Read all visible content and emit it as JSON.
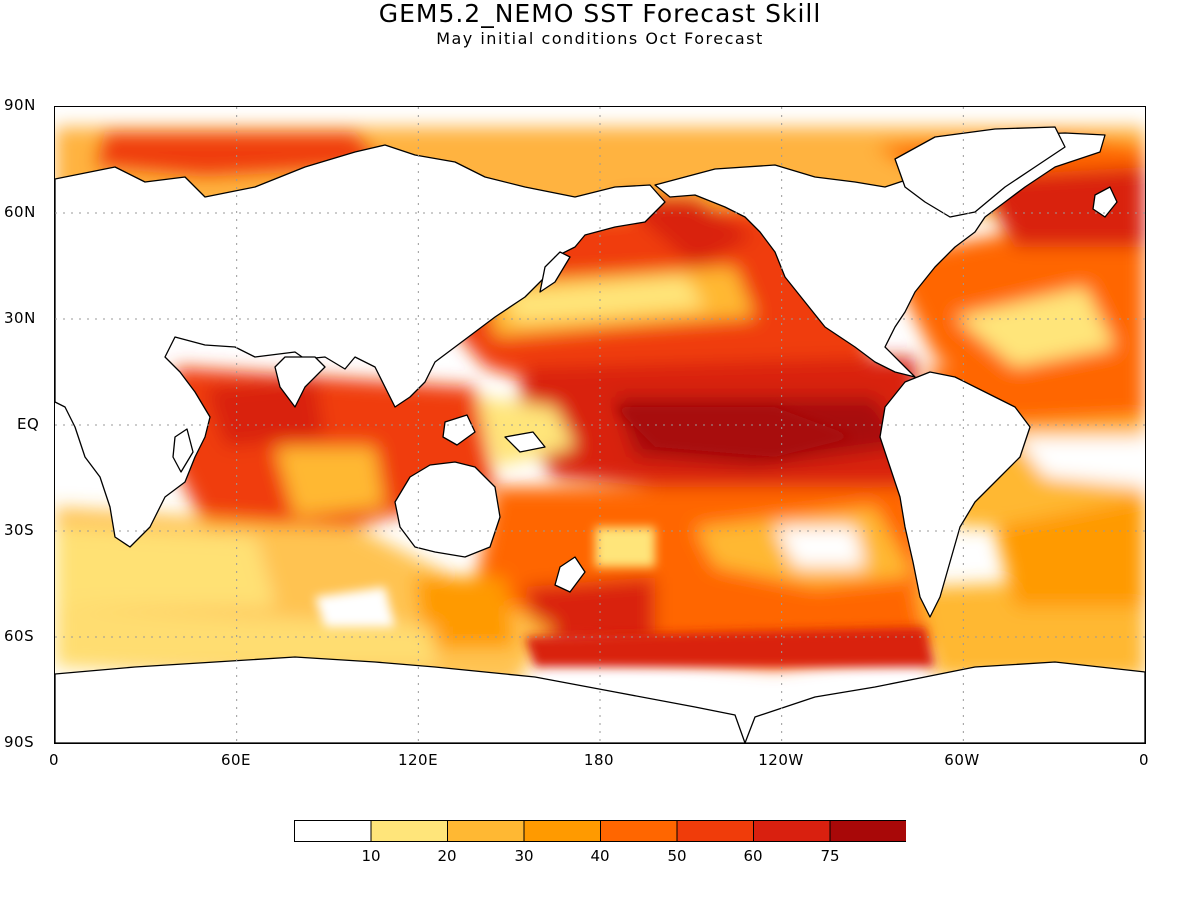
{
  "title": "GEM5.2_NEMO SST Forecast Skill",
  "subtitle": "May initial conditions  Oct Forecast",
  "lat_labels": [
    "90N",
    "60N",
    "30N",
    "EQ",
    "30S",
    "60S",
    "90S"
  ],
  "lon_labels": [
    "0",
    "60E",
    "120E",
    "180",
    "120W",
    "60W",
    "0"
  ],
  "colorbar": {
    "colors": [
      "#ffffff",
      "#ffe57a",
      "#ffb833",
      "#ff9a00",
      "#ff6600",
      "#f03c0a",
      "#d9200f",
      "#a80808"
    ],
    "tick_labels": [
      "10",
      "20",
      "30",
      "40",
      "50",
      "60",
      "75"
    ]
  },
  "map": {
    "land_color": "#ffffff",
    "coast_color": "#000000",
    "grid_style": "dotted"
  }
}
